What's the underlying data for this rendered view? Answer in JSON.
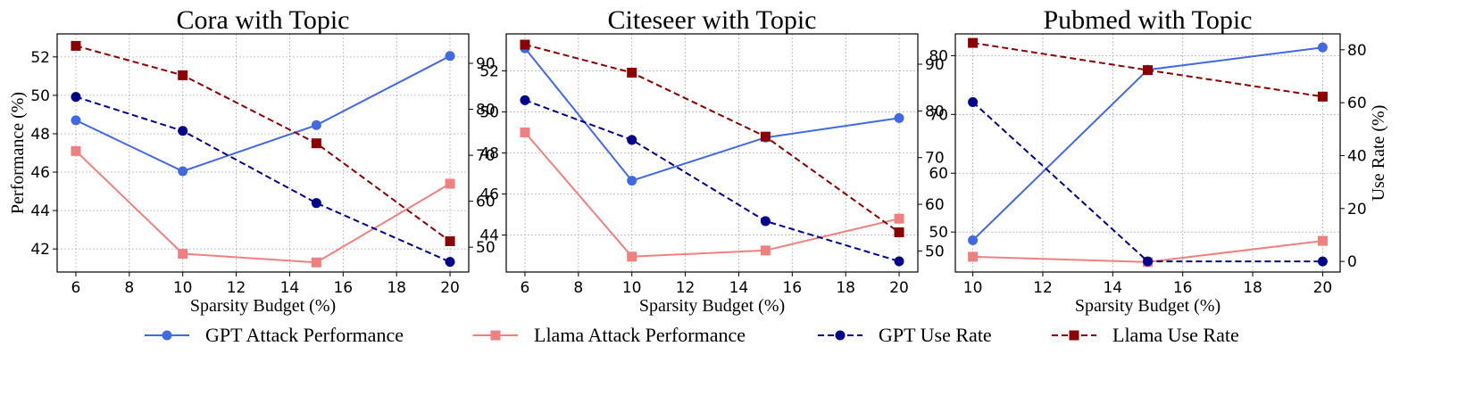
{
  "chart_data": [
    {
      "type": "line",
      "title": "Cora with Topic",
      "xlabel": "Sparsity Budget (%)",
      "ylabel": "Performance (%)",
      "y2label": "",
      "x": [
        6,
        10,
        15,
        20
      ],
      "xlim": [
        5.3,
        20.7
      ],
      "xticks": [
        6,
        8,
        10,
        12,
        14,
        16,
        18,
        20
      ],
      "ylim": [
        40.8,
        53.2
      ],
      "yticks": [
        42,
        44,
        46,
        48,
        50,
        52
      ],
      "y2lim": [
        44.6,
        96.4
      ],
      "y2ticks": [
        50,
        60,
        70,
        80,
        90
      ],
      "series": [
        {
          "name": "GPT Attack Performance",
          "axis": "left",
          "color": "#4169e1",
          "marker": "circle",
          "dashed": false,
          "values": [
            48.7,
            46.05,
            48.45,
            52.05
          ]
        },
        {
          "name": "Llama Attack Performance",
          "axis": "left",
          "color": "#f08080",
          "marker": "square",
          "dashed": false,
          "values": [
            47.1,
            41.75,
            41.3,
            45.4
          ]
        },
        {
          "name": "GPT Use Rate",
          "axis": "right",
          "color": "#00008b",
          "marker": "circle",
          "dashed": true,
          "values": [
            82.7,
            75.3,
            59.6,
            46.8
          ]
        },
        {
          "name": "Llama Use Rate",
          "axis": "right",
          "color": "#8b0000",
          "marker": "square",
          "dashed": true,
          "values": [
            93.8,
            87.4,
            72.6,
            51.3
          ]
        }
      ]
    },
    {
      "type": "line",
      "title": "Citeseer with Topic",
      "xlabel": "Sparsity Budget (%)",
      "ylabel": "",
      "y2label": "",
      "x": [
        6,
        10,
        15,
        20
      ],
      "xlim": [
        5.3,
        20.7
      ],
      "xticks": [
        6,
        8,
        10,
        12,
        14,
        16,
        18,
        20
      ],
      "ylim": [
        42.2,
        53.8
      ],
      "yticks": [
        44,
        46,
        48,
        50,
        52
      ],
      "y2lim": [
        45.5,
        96.5
      ],
      "y2ticks": [
        50,
        60,
        70,
        80,
        90
      ],
      "series": [
        {
          "name": "GPT Attack Performance",
          "axis": "left",
          "color": "#4169e1",
          "marker": "circle",
          "dashed": false,
          "values": [
            53.1,
            46.65,
            48.75,
            49.7
          ]
        },
        {
          "name": "Llama Attack Performance",
          "axis": "left",
          "color": "#f08080",
          "marker": "square",
          "dashed": false,
          "values": [
            49.0,
            42.95,
            43.25,
            44.8
          ]
        },
        {
          "name": "GPT Use Rate",
          "axis": "right",
          "color": "#00008b",
          "marker": "circle",
          "dashed": true,
          "values": [
            82.3,
            73.8,
            56.4,
            47.8
          ]
        },
        {
          "name": "Llama Use Rate",
          "axis": "right",
          "color": "#8b0000",
          "marker": "square",
          "dashed": true,
          "values": [
            94.2,
            88.2,
            74.5,
            54.0
          ]
        }
      ]
    },
    {
      "type": "line",
      "title": "Pubmed with Topic",
      "xlabel": "Sparsity Budget (%)",
      "ylabel": "",
      "y2label": "Use Rate (%)",
      "x": [
        10,
        15,
        20
      ],
      "xlim": [
        9.5,
        20.5
      ],
      "xticks": [
        10,
        12,
        14,
        16,
        18,
        20
      ],
      "ylim": [
        43.2,
        83.7
      ],
      "yticks": [
        50,
        60,
        70,
        80
      ],
      "y2lim": [
        -4,
        86
      ],
      "y2ticks": [
        0,
        20,
        40,
        60,
        80
      ],
      "series": [
        {
          "name": "GPT Attack Performance",
          "axis": "left",
          "color": "#4169e1",
          "marker": "circle",
          "dashed": false,
          "values": [
            48.6,
            77.6,
            81.4
          ]
        },
        {
          "name": "Llama Attack Performance",
          "axis": "left",
          "color": "#f08080",
          "marker": "square",
          "dashed": false,
          "values": [
            45.8,
            44.9,
            48.5
          ]
        },
        {
          "name": "GPT Use Rate",
          "axis": "right",
          "color": "#00008b",
          "marker": "circle",
          "dashed": true,
          "values": [
            60.2,
            0.0,
            0.0
          ]
        },
        {
          "name": "Llama Use Rate",
          "axis": "right",
          "color": "#8b0000",
          "marker": "square",
          "dashed": true,
          "values": [
            82.6,
            72.3,
            62.3
          ]
        }
      ]
    }
  ],
  "legend": {
    "placement": "bottom",
    "items": [
      "GPT Attack Performance",
      "Llama Attack Performance",
      "GPT Use Rate",
      "Llama Use Rate"
    ]
  }
}
